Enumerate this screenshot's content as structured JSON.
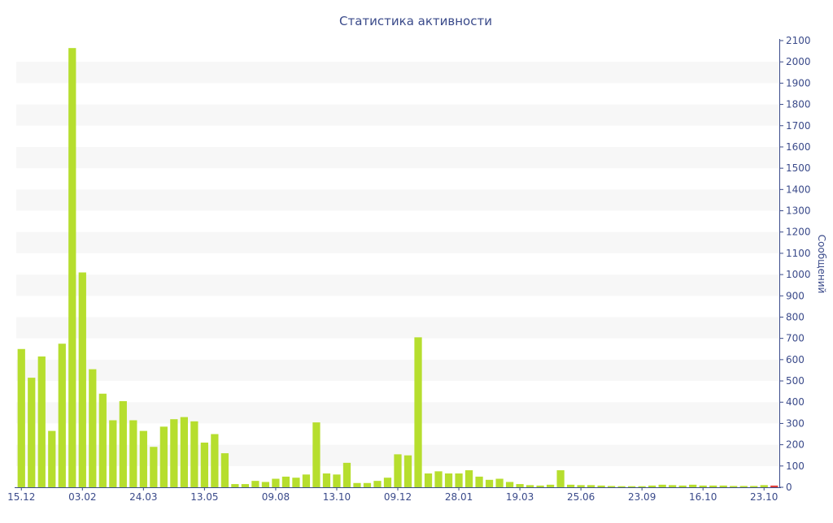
{
  "chart_data": {
    "type": "bar",
    "title": "Статистика активности",
    "xlabel": "",
    "ylabel": "Сообщений",
    "ylim": [
      0,
      2100
    ],
    "y_ticks": [
      0,
      100,
      200,
      300,
      400,
      500,
      600,
      700,
      800,
      900,
      1000,
      1100,
      1200,
      1300,
      1400,
      1500,
      1600,
      1700,
      1800,
      1900,
      2000,
      2100
    ],
    "x_tick_labels": [
      {
        "label": "15.12",
        "at_bar": 0
      },
      {
        "label": "03.02",
        "at_bar": 6
      },
      {
        "label": "24.03",
        "at_bar": 12
      },
      {
        "label": "13.05",
        "at_bar": 18
      },
      {
        "label": "09.08",
        "at_bar": 25
      },
      {
        "label": "13.10",
        "at_bar": 31
      },
      {
        "label": "09.12",
        "at_bar": 37
      },
      {
        "label": "28.01",
        "at_bar": 43
      },
      {
        "label": "19.03",
        "at_bar": 49
      },
      {
        "label": "25.06",
        "at_bar": 55
      },
      {
        "label": "23.09",
        "at_bar": 61
      },
      {
        "label": "16.10",
        "at_bar": 67
      },
      {
        "label": "23.10",
        "at_bar": 73
      }
    ],
    "grid": "alternating horizontal bands",
    "y_axis_side": "right",
    "colors": {
      "bar": "#b6de2e",
      "last_bar": "#e0403a",
      "band": "#f7f7f7",
      "text": "#3a4a8a",
      "axis": "#3a4a8a"
    },
    "values": [
      650,
      515,
      615,
      265,
      675,
      2065,
      1010,
      555,
      440,
      315,
      405,
      315,
      265,
      190,
      285,
      320,
      330,
      310,
      210,
      250,
      160,
      15,
      15,
      30,
      25,
      40,
      50,
      45,
      60,
      305,
      65,
      60,
      115,
      20,
      20,
      30,
      45,
      155,
      150,
      705,
      65,
      75,
      65,
      65,
      80,
      50,
      35,
      40,
      25,
      15,
      10,
      8,
      12,
      80,
      12,
      10,
      10,
      8,
      6,
      5,
      5,
      5,
      8,
      12,
      10,
      8,
      12,
      8,
      8,
      8,
      6,
      6,
      6,
      10,
      8
    ]
  }
}
